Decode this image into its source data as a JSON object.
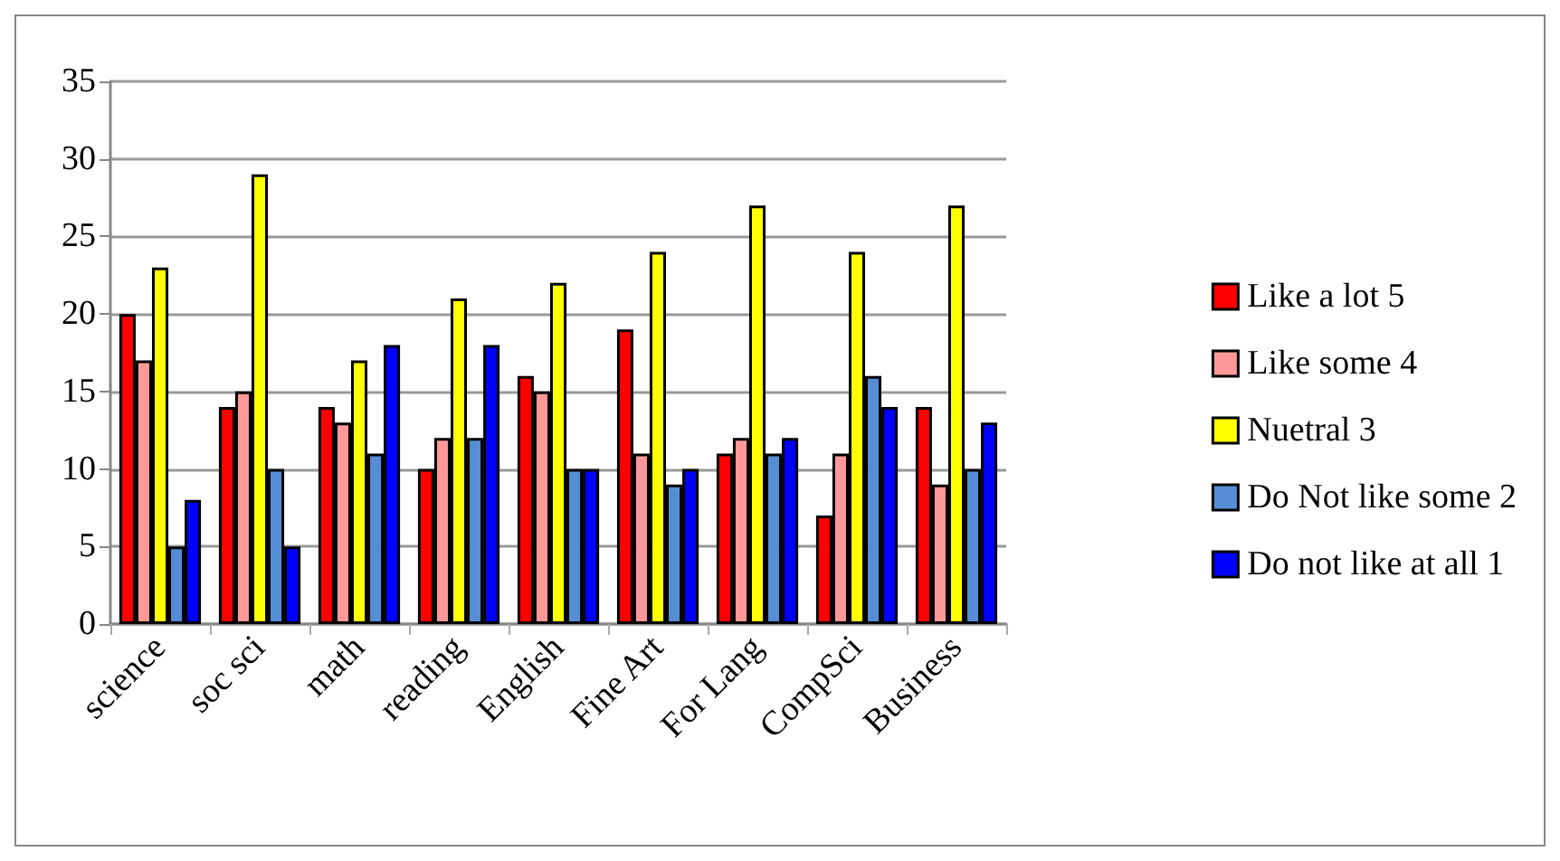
{
  "chart_data": {
    "type": "bar",
    "categories": [
      "science",
      "soc sci",
      "math",
      "reading",
      "English",
      "Fine Art",
      "For Lang",
      "CompSci",
      "Business"
    ],
    "series": [
      {
        "name": "Like a lot 5",
        "color": "#ff0000",
        "values": [
          20,
          14,
          14,
          10,
          16,
          19,
          11,
          7,
          14
        ]
      },
      {
        "name": "Like some 4",
        "color": "#ff9999",
        "values": [
          17,
          15,
          13,
          12,
          15,
          11,
          12,
          11,
          9
        ]
      },
      {
        "name": "Nuetral 3",
        "color": "#ffff00",
        "values": [
          23,
          29,
          17,
          21,
          22,
          24,
          27,
          24,
          27
        ]
      },
      {
        "name": "Do Not like some 2",
        "color": "#558ed5",
        "values": [
          5,
          10,
          11,
          12,
          10,
          9,
          11,
          16,
          10
        ]
      },
      {
        "name": "Do not like at all 1",
        "color": "#0000ff",
        "values": [
          8,
          5,
          18,
          18,
          10,
          10,
          12,
          14,
          13
        ]
      }
    ],
    "ylim": [
      0,
      35
    ],
    "yticks": [
      0,
      5,
      10,
      15,
      20,
      25,
      30,
      35
    ],
    "grid": "y",
    "legend": "right"
  }
}
